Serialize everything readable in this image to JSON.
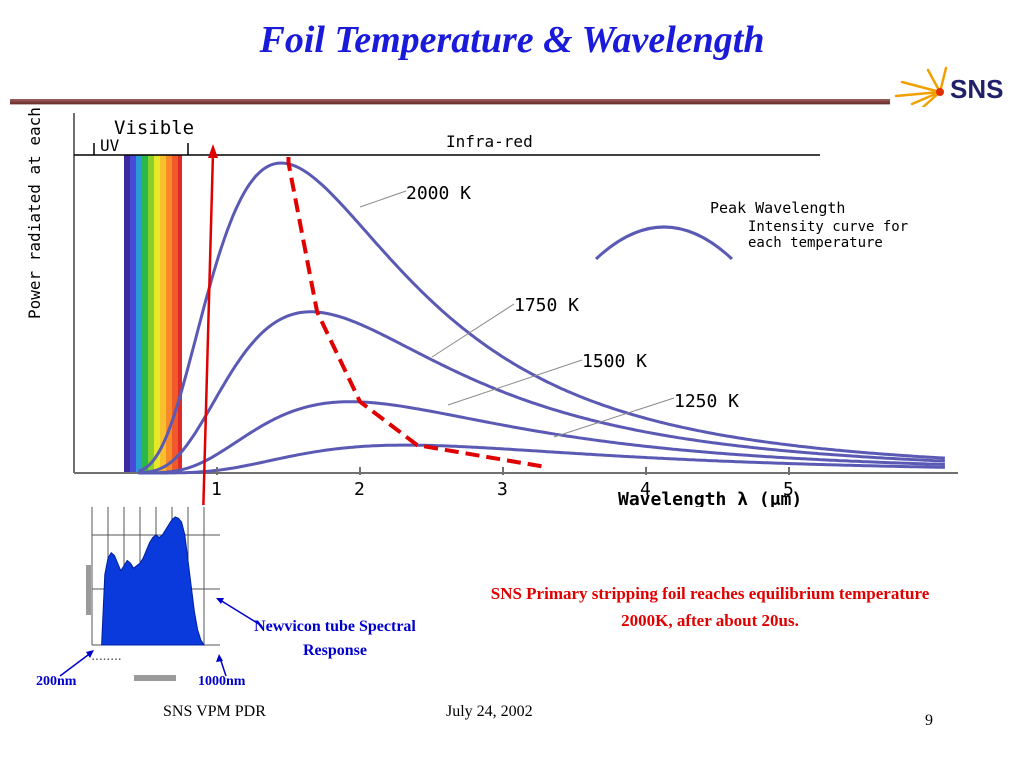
{
  "slide": {
    "title": "Foil Temperature & Wavelength",
    "logo_text": "SNS",
    "footer_left": "SNS VPM PDR",
    "footer_date": "July 24, 2002",
    "page_number": "9",
    "note": "SNS Primary stripping foil reaches equilibrium temperature 2000K, after about 20us.",
    "tube_label": "Newvicon tube Spectral Response",
    "label_200": "200nm",
    "label_1000": "1000nm"
  },
  "colors": {
    "title": "#1a1adb",
    "curve": "#5a5ab4",
    "peak_line": "#e00000",
    "note": "#e00000",
    "tube_fill": "#0a3adc",
    "label_blue": "#0000cc"
  },
  "chart_data": [
    {
      "type": "line",
      "title": "",
      "xlabel": "Wavelength λ (μm)",
      "ylabel": "Power radiated at each wavelength",
      "xlim": [
        0,
        6.1
      ],
      "ylim": [
        0,
        1
      ],
      "x_ticks": [
        "1",
        "2",
        "3",
        "4",
        "5"
      ],
      "regions": [
        {
          "name": "UV",
          "label": "UV"
        },
        {
          "name": "Visible",
          "label": "Visible"
        },
        {
          "name": "Infra-red",
          "label": "Infra-red"
        }
      ],
      "series": [
        {
          "name": "2000 K",
          "temperature": 2000,
          "peak_x": 1.5,
          "peak_y": 1.0
        },
        {
          "name": "1750 K",
          "temperature": 1750,
          "peak_x": 1.7,
          "peak_y": 0.52
        },
        {
          "name": "1500 K",
          "temperature": 1500,
          "peak_x": 2.0,
          "peak_y": 0.23
        },
        {
          "name": "1250 K",
          "temperature": 1250,
          "peak_x": 2.4,
          "peak_y": 0.09
        }
      ],
      "legend": [
        {
          "label": "Peak Wavelength",
          "style": "dashed-red"
        },
        {
          "label": "Intensity curve for each temperature",
          "style": "curve"
        }
      ],
      "grid": false
    },
    {
      "type": "area",
      "title": "",
      "xlabel": "",
      "ylabel": "",
      "xlim": [
        200,
        1000
      ],
      "series": [
        {
          "name": "",
          "x": [
            260,
            280,
            300,
            320,
            340,
            360,
            380,
            400,
            420,
            440,
            460,
            480,
            500,
            520,
            540,
            560,
            580,
            600,
            620,
            640,
            660,
            680,
            700,
            720,
            740,
            760,
            780,
            800,
            820,
            840,
            860,
            880,
            900
          ],
          "values": [
            0.0,
            0.55,
            0.68,
            0.72,
            0.7,
            0.64,
            0.58,
            0.62,
            0.66,
            0.64,
            0.6,
            0.62,
            0.64,
            0.68,
            0.74,
            0.8,
            0.84,
            0.86,
            0.84,
            0.86,
            0.9,
            0.94,
            0.98,
            1.0,
            0.99,
            0.96,
            0.86,
            0.66,
            0.46,
            0.26,
            0.12,
            0.04,
            0.0
          ]
        }
      ]
    }
  ]
}
